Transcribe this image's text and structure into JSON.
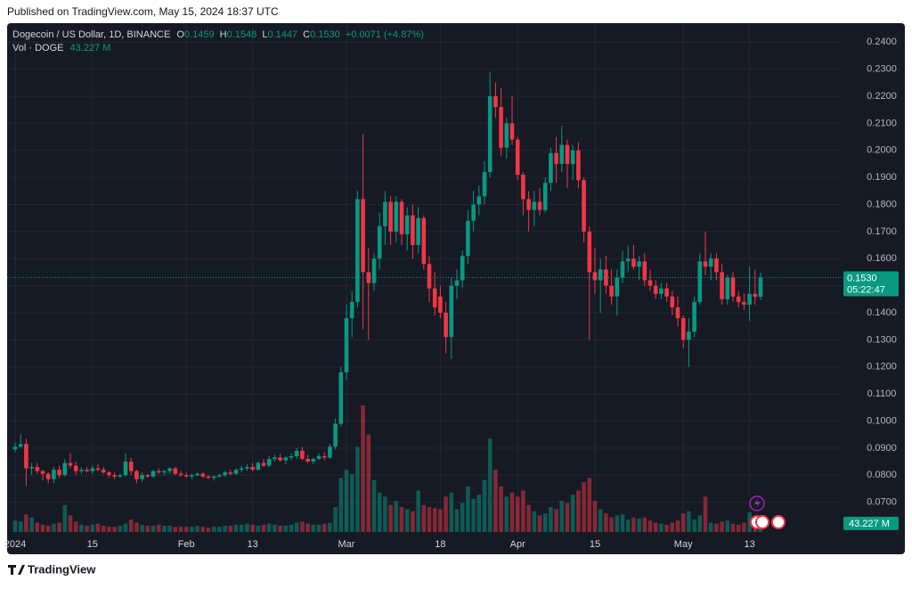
{
  "header": {
    "published": "Published on TradingView.com, May 15, 2024 18:37 UTC"
  },
  "footer": {
    "brand": "TradingView"
  },
  "chart_data": {
    "type": "candlestick",
    "title": "Dogecoin / US Dollar, 1D, BINANCE",
    "legend": {
      "o_key": "O",
      "o": "0.1459",
      "h_key": "H",
      "h": "0.1548",
      "l_key": "L",
      "l": "0.1447",
      "c_key": "C",
      "c": "0.1530",
      "change": "+0.0071 (+4.87%)"
    },
    "volume_title": "Vol · DOGE",
    "volume_label": "43.227 M",
    "categories": [
      "2024",
      null,
      null,
      null,
      null,
      null,
      null,
      null,
      null,
      null,
      null,
      null,
      null,
      null,
      "15",
      null,
      null,
      null,
      null,
      null,
      null,
      null,
      null,
      null,
      null,
      null,
      null,
      null,
      null,
      null,
      null,
      "Feb",
      null,
      null,
      null,
      null,
      null,
      null,
      null,
      null,
      null,
      null,
      null,
      "13",
      null,
      null,
      null,
      null,
      null,
      null,
      null,
      null,
      null,
      null,
      null,
      null,
      null,
      null,
      null,
      null,
      "Mar",
      null,
      null,
      null,
      null,
      null,
      null,
      null,
      null,
      null,
      null,
      null,
      null,
      null,
      null,
      null,
      null,
      "18",
      null,
      null,
      null,
      null,
      null,
      null,
      null,
      null,
      null,
      null,
      null,
      null,
      null,
      "Apr",
      null,
      null,
      null,
      null,
      null,
      null,
      null,
      null,
      null,
      null,
      null,
      null,
      null,
      "15",
      null,
      null,
      null,
      null,
      null,
      null,
      null,
      null,
      null,
      null,
      null,
      null,
      null,
      null,
      null,
      "May",
      null,
      null,
      null,
      null,
      null,
      null,
      null,
      null,
      null,
      null,
      null,
      "13",
      null,
      null
    ],
    "ohlc": [
      [
        0.0895,
        0.092,
        0.0885,
        0.0905
      ],
      [
        0.0905,
        0.095,
        0.09,
        0.0915
      ],
      [
        0.0915,
        0.0935,
        0.076,
        0.0825
      ],
      [
        0.0825,
        0.0845,
        0.08,
        0.083
      ],
      [
        0.083,
        0.0845,
        0.0805,
        0.0815
      ],
      [
        0.0815,
        0.082,
        0.078,
        0.0805
      ],
      [
        0.0805,
        0.081,
        0.077,
        0.0785
      ],
      [
        0.0785,
        0.083,
        0.077,
        0.082
      ],
      [
        0.082,
        0.0835,
        0.079,
        0.08
      ],
      [
        0.08,
        0.086,
        0.0795,
        0.0845
      ],
      [
        0.0845,
        0.088,
        0.0825,
        0.0835
      ],
      [
        0.0835,
        0.085,
        0.08,
        0.0815
      ],
      [
        0.0815,
        0.083,
        0.0805,
        0.082
      ],
      [
        0.082,
        0.083,
        0.081,
        0.0815
      ],
      [
        0.0815,
        0.0835,
        0.0805,
        0.0825
      ],
      [
        0.0825,
        0.084,
        0.0815,
        0.082
      ],
      [
        0.082,
        0.083,
        0.0805,
        0.081
      ],
      [
        0.081,
        0.0815,
        0.079,
        0.08
      ],
      [
        0.08,
        0.081,
        0.0785,
        0.0795
      ],
      [
        0.0795,
        0.0805,
        0.079,
        0.08
      ],
      [
        0.08,
        0.088,
        0.0795,
        0.085
      ],
      [
        0.085,
        0.0865,
        0.08,
        0.0815
      ],
      [
        0.0815,
        0.082,
        0.077,
        0.0785
      ],
      [
        0.0785,
        0.081,
        0.0775,
        0.08
      ],
      [
        0.08,
        0.0805,
        0.079,
        0.0795
      ],
      [
        0.0795,
        0.082,
        0.079,
        0.0815
      ],
      [
        0.0815,
        0.0825,
        0.0805,
        0.081
      ],
      [
        0.081,
        0.082,
        0.08,
        0.0815
      ],
      [
        0.0815,
        0.083,
        0.0805,
        0.0825
      ],
      [
        0.0825,
        0.083,
        0.08,
        0.0805
      ],
      [
        0.0805,
        0.0815,
        0.0795,
        0.08
      ],
      [
        0.08,
        0.081,
        0.079,
        0.0795
      ],
      [
        0.0795,
        0.0805,
        0.0785,
        0.08
      ],
      [
        0.08,
        0.081,
        0.0795,
        0.0805
      ],
      [
        0.0805,
        0.081,
        0.079,
        0.0795
      ],
      [
        0.0795,
        0.08,
        0.0785,
        0.079
      ],
      [
        0.079,
        0.08,
        0.078,
        0.0795
      ],
      [
        0.0795,
        0.0805,
        0.079,
        0.08
      ],
      [
        0.08,
        0.0815,
        0.0795,
        0.081
      ],
      [
        0.081,
        0.082,
        0.08,
        0.0805
      ],
      [
        0.0805,
        0.0825,
        0.08,
        0.082
      ],
      [
        0.082,
        0.0835,
        0.081,
        0.0825
      ],
      [
        0.0825,
        0.084,
        0.0815,
        0.083
      ],
      [
        0.083,
        0.0845,
        0.0815,
        0.082
      ],
      [
        0.082,
        0.085,
        0.0815,
        0.0845
      ],
      [
        0.0845,
        0.086,
        0.083,
        0.0835
      ],
      [
        0.0835,
        0.087,
        0.083,
        0.086
      ],
      [
        0.086,
        0.0875,
        0.085,
        0.0865
      ],
      [
        0.0865,
        0.088,
        0.085,
        0.0855
      ],
      [
        0.0855,
        0.087,
        0.084,
        0.0865
      ],
      [
        0.0865,
        0.088,
        0.0855,
        0.087
      ],
      [
        0.087,
        0.09,
        0.086,
        0.089
      ],
      [
        0.089,
        0.0905,
        0.0855,
        0.086
      ],
      [
        0.086,
        0.0875,
        0.0845,
        0.085
      ],
      [
        0.085,
        0.0865,
        0.084,
        0.086
      ],
      [
        0.086,
        0.088,
        0.0855,
        0.087
      ],
      [
        0.087,
        0.0885,
        0.0855,
        0.0865
      ],
      [
        0.0865,
        0.0915,
        0.086,
        0.0905
      ],
      [
        0.0905,
        0.101,
        0.0895,
        0.099
      ],
      [
        0.099,
        0.12,
        0.098,
        0.118
      ],
      [
        0.118,
        0.143,
        0.115,
        0.138
      ],
      [
        0.138,
        0.148,
        0.131,
        0.144
      ],
      [
        0.144,
        0.185,
        0.142,
        0.182
      ],
      [
        0.182,
        0.206,
        0.134,
        0.155
      ],
      [
        0.155,
        0.164,
        0.13,
        0.151
      ],
      [
        0.151,
        0.162,
        0.148,
        0.16
      ],
      [
        0.16,
        0.177,
        0.156,
        0.172
      ],
      [
        0.172,
        0.185,
        0.165,
        0.181
      ],
      [
        0.181,
        0.183,
        0.165,
        0.17
      ],
      [
        0.17,
        0.183,
        0.166,
        0.181
      ],
      [
        0.181,
        0.182,
        0.165,
        0.169
      ],
      [
        0.169,
        0.179,
        0.163,
        0.176
      ],
      [
        0.176,
        0.18,
        0.16,
        0.165
      ],
      [
        0.165,
        0.179,
        0.162,
        0.175
      ],
      [
        0.175,
        0.176,
        0.156,
        0.158
      ],
      [
        0.158,
        0.161,
        0.144,
        0.149
      ],
      [
        0.149,
        0.155,
        0.139,
        0.142
      ],
      [
        0.146,
        0.15,
        0.138,
        0.14
      ],
      [
        0.14,
        0.144,
        0.125,
        0.131
      ],
      [
        0.131,
        0.153,
        0.123,
        0.15
      ],
      [
        0.15,
        0.156,
        0.145,
        0.152
      ],
      [
        0.152,
        0.163,
        0.149,
        0.161
      ],
      [
        0.161,
        0.178,
        0.158,
        0.174
      ],
      [
        0.174,
        0.185,
        0.17,
        0.18
      ],
      [
        0.18,
        0.187,
        0.176,
        0.183
      ],
      [
        0.183,
        0.196,
        0.18,
        0.192
      ],
      [
        0.192,
        0.229,
        0.19,
        0.22
      ],
      [
        0.22,
        0.225,
        0.212,
        0.216
      ],
      [
        0.216,
        0.223,
        0.198,
        0.201
      ],
      [
        0.201,
        0.212,
        0.197,
        0.21
      ],
      [
        0.21,
        0.22,
        0.202,
        0.204
      ],
      [
        0.204,
        0.205,
        0.189,
        0.191
      ],
      [
        0.191,
        0.192,
        0.176,
        0.182
      ],
      [
        0.182,
        0.185,
        0.17,
        0.178
      ],
      [
        0.178,
        0.185,
        0.172,
        0.181
      ],
      [
        0.181,
        0.186,
        0.176,
        0.178
      ],
      [
        0.178,
        0.19,
        0.177,
        0.188
      ],
      [
        0.188,
        0.201,
        0.185,
        0.199
      ],
      [
        0.199,
        0.205,
        0.188,
        0.195
      ],
      [
        0.195,
        0.209,
        0.192,
        0.202
      ],
      [
        0.202,
        0.204,
        0.186,
        0.195
      ],
      [
        0.195,
        0.202,
        0.189,
        0.2
      ],
      [
        0.2,
        0.203,
        0.186,
        0.189
      ],
      [
        0.189,
        0.19,
        0.166,
        0.17
      ],
      [
        0.17,
        0.172,
        0.13,
        0.155
      ],
      [
        0.155,
        0.164,
        0.147,
        0.152
      ],
      [
        0.152,
        0.16,
        0.14,
        0.156
      ],
      [
        0.156,
        0.161,
        0.147,
        0.15
      ],
      [
        0.15,
        0.156,
        0.143,
        0.146
      ],
      [
        0.146,
        0.156,
        0.139,
        0.153
      ],
      [
        0.153,
        0.163,
        0.151,
        0.159
      ],
      [
        0.159,
        0.165,
        0.155,
        0.16
      ],
      [
        0.16,
        0.165,
        0.156,
        0.157
      ],
      [
        0.157,
        0.161,
        0.152,
        0.159
      ],
      [
        0.159,
        0.162,
        0.15,
        0.152
      ],
      [
        0.152,
        0.156,
        0.148,
        0.15
      ],
      [
        0.15,
        0.152,
        0.145,
        0.147
      ],
      [
        0.147,
        0.151,
        0.145,
        0.149
      ],
      [
        0.149,
        0.151,
        0.144,
        0.146
      ],
      [
        0.146,
        0.148,
        0.139,
        0.142
      ],
      [
        0.142,
        0.146,
        0.135,
        0.138
      ],
      [
        0.138,
        0.139,
        0.127,
        0.13
      ],
      [
        0.13,
        0.138,
        0.12,
        0.133
      ],
      [
        0.133,
        0.146,
        0.131,
        0.144
      ],
      [
        0.144,
        0.162,
        0.143,
        0.159
      ],
      [
        0.159,
        0.17,
        0.154,
        0.157
      ],
      [
        0.157,
        0.162,
        0.152,
        0.16
      ],
      [
        0.16,
        0.162,
        0.152,
        0.155
      ],
      [
        0.155,
        0.158,
        0.143,
        0.145
      ],
      [
        0.145,
        0.154,
        0.143,
        0.153
      ],
      [
        0.153,
        0.155,
        0.144,
        0.146
      ],
      [
        0.146,
        0.148,
        0.142,
        0.144
      ],
      [
        0.144,
        0.147,
        0.141,
        0.143
      ],
      [
        0.143,
        0.157,
        0.137,
        0.147
      ],
      [
        0.147,
        0.156,
        0.143,
        0.1459
      ],
      [
        0.1459,
        0.1548,
        0.1447,
        0.153
      ]
    ],
    "volume": [
      55,
      50,
      85,
      70,
      45,
      35,
      30,
      40,
      45,
      130,
      80,
      50,
      35,
      30,
      35,
      40,
      30,
      25,
      25,
      30,
      40,
      60,
      45,
      35,
      30,
      30,
      35,
      30,
      30,
      25,
      25,
      25,
      25,
      30,
      25,
      20,
      25,
      25,
      30,
      30,
      35,
      35,
      40,
      35,
      30,
      35,
      40,
      35,
      30,
      30,
      35,
      45,
      50,
      40,
      35,
      35,
      40,
      45,
      120,
      260,
      300,
      280,
      410,
      610,
      470,
      250,
      190,
      170,
      130,
      150,
      120,
      110,
      100,
      200,
      130,
      120,
      115,
      110,
      170,
      190,
      110,
      140,
      220,
      160,
      180,
      250,
      450,
      300,
      220,
      170,
      190,
      170,
      200,
      130,
      100,
      80,
      90,
      120,
      110,
      150,
      140,
      180,
      200,
      240,
      260,
      150,
      110,
      90,
      70,
      80,
      85,
      60,
      70,
      65,
      70,
      55,
      45,
      40,
      35,
      45,
      55,
      90,
      100,
      60,
      80,
      170,
      45,
      40,
      50,
      55,
      40,
      35,
      45,
      95,
      60,
      43.227
    ],
    "ylim": [
      0.059,
      0.247
    ],
    "yticks": [
      {
        "value": 0.07,
        "label": "0.0700"
      },
      {
        "value": 0.08,
        "label": "0.0800"
      },
      {
        "value": 0.09,
        "label": "0.0900"
      },
      {
        "value": 0.1,
        "label": "0.1000"
      },
      {
        "value": 0.11,
        "label": "0.1100"
      },
      {
        "value": 0.12,
        "label": "0.1200"
      },
      {
        "value": 0.13,
        "label": "0.1300"
      },
      {
        "value": 0.14,
        "label": "0.1400"
      },
      {
        "value": 0.15,
        "label": "0.1500"
      },
      {
        "value": 0.16,
        "label": "0.1600"
      },
      {
        "value": 0.17,
        "label": "0.1700"
      },
      {
        "value": 0.18,
        "label": "0.1800"
      },
      {
        "value": 0.19,
        "label": "0.1900"
      },
      {
        "value": 0.2,
        "label": "0.2000"
      },
      {
        "value": 0.21,
        "label": "0.2100"
      },
      {
        "value": 0.22,
        "label": "0.2200"
      },
      {
        "value": 0.23,
        "label": "0.2300"
      },
      {
        "value": 0.24,
        "label": "0.2400"
      }
    ],
    "volume_lim": [
      0,
      700
    ],
    "up_color": "#089981",
    "down_color": "#f23645",
    "last_price": {
      "value": 0.153,
      "label": "0.1530"
    },
    "countdown": "05:22:47",
    "grid": true
  }
}
